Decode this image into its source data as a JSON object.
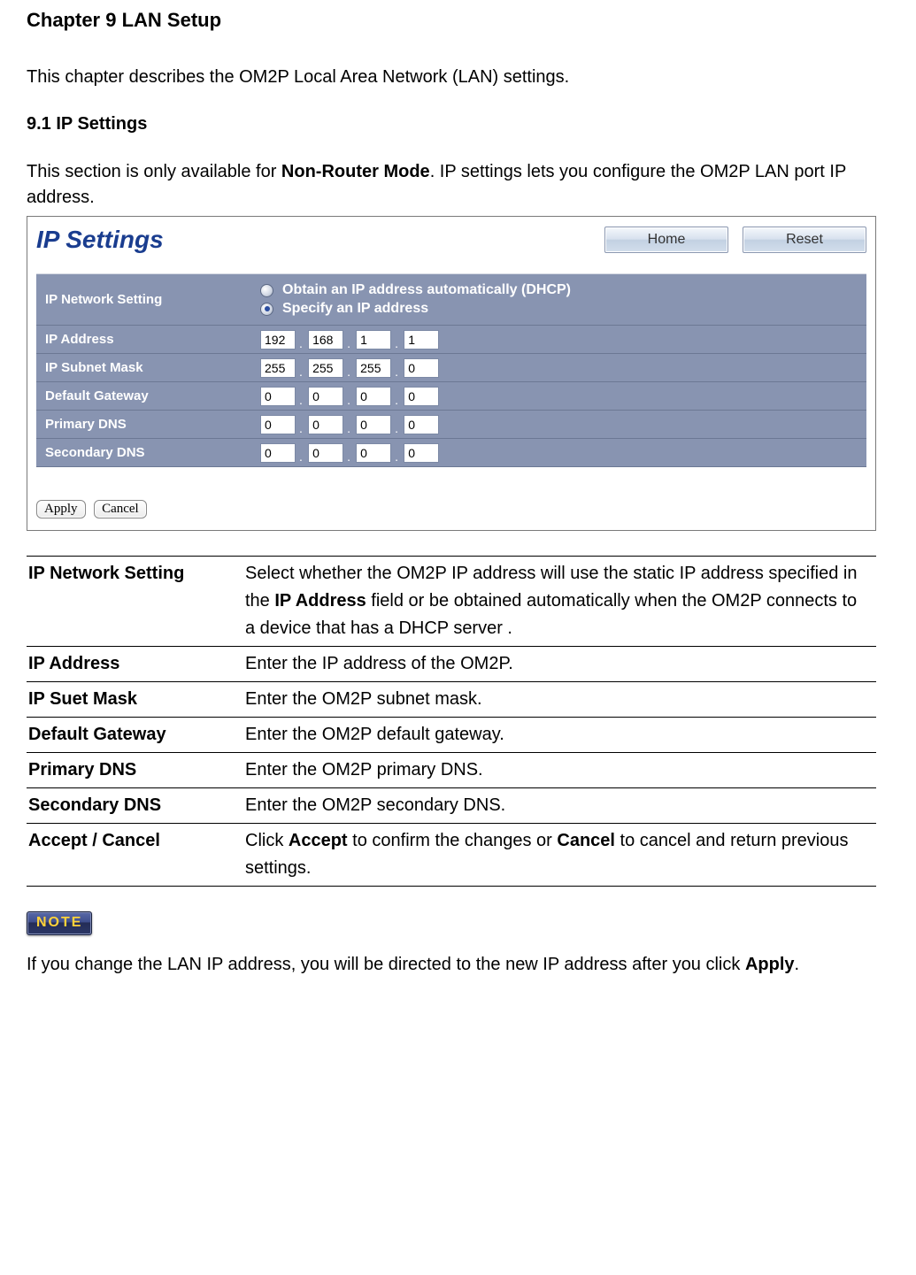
{
  "chapter_title": "Chapter 9 LAN Setup",
  "chapter_intro": "This chapter describes the OM2P Local Area Network (LAN) settings.",
  "section_title": "9.1 IP Settings",
  "section_desc_pre": "This section is only available for ",
  "section_desc_bold": "Non-Router Mode",
  "section_desc_post": ". IP settings lets you configure the OM2P LAN port IP address.",
  "panel": {
    "title": "IP Settings",
    "home_btn": "Home",
    "reset_btn": "Reset",
    "rows": {
      "network_setting_label": "IP Network Setting",
      "radio_dhcp": "Obtain an IP address automatically (DHCP)",
      "radio_static": "Specify an IP address",
      "ip_address_label": "IP Address",
      "ip_address": [
        "192",
        "168",
        "1",
        "1"
      ],
      "subnet_label": "IP Subnet Mask",
      "subnet": [
        "255",
        "255",
        "255",
        "0"
      ],
      "gateway_label": "Default Gateway",
      "gateway": [
        "0",
        "0",
        "0",
        "0"
      ],
      "pdns_label": "Primary DNS",
      "pdns": [
        "0",
        "0",
        "0",
        "0"
      ],
      "sdns_label": "Secondary DNS",
      "sdns": [
        "0",
        "0",
        "0",
        "0"
      ]
    },
    "apply_btn": "Apply",
    "cancel_btn": "Cancel"
  },
  "defs": [
    {
      "term": "IP Network Setting",
      "desc_parts": [
        "Select whether the OM2P IP address will use the static IP address specified in the ",
        "IP Address",
        " field or be obtained automatically when the OM2P connects to a device that has a DHCP server ."
      ]
    },
    {
      "term": "IP Address",
      "desc": "Enter the IP address of the OM2P."
    },
    {
      "term": "IP Suet Mask",
      "desc": "Enter the OM2P subnet mask."
    },
    {
      "term": "Default Gateway",
      "desc": "Enter the OM2P default gateway."
    },
    {
      "term": "Primary DNS",
      "desc": "Enter the OM2P primary DNS."
    },
    {
      "term": "Secondary DNS",
      "desc": "Enter the OM2P secondary DNS."
    },
    {
      "term": "Accept / Cancel",
      "desc_parts": [
        "Click ",
        "Accept",
        " to confirm the changes or ",
        "Cancel",
        " to cancel and return previous settings."
      ]
    }
  ],
  "note_label": "NOTE",
  "note_text_pre": "If you change the LAN IP address, you will be directed to the new IP address after you click ",
  "note_text_bold": "Apply",
  "note_text_post": "."
}
